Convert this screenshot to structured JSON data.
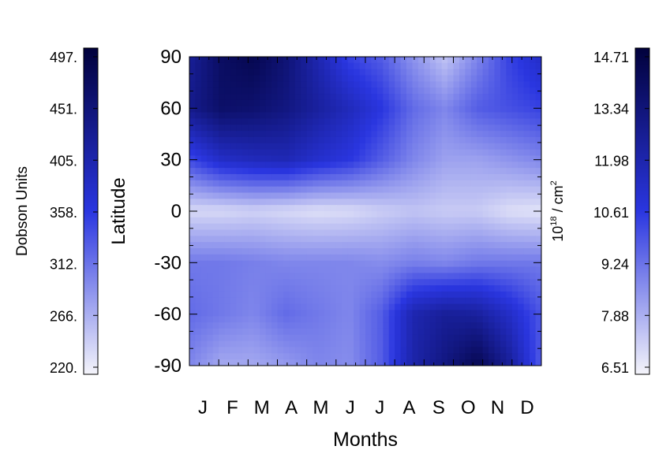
{
  "chart_data": {
    "type": "heatmap",
    "title": "",
    "xlabel": "Months",
    "ylabel": "Latitude",
    "x_categories": [
      "J",
      "F",
      "M",
      "A",
      "M",
      "J",
      "J",
      "A",
      "S",
      "O",
      "N",
      "D"
    ],
    "y_ticks": [
      "90",
      "60",
      "30",
      "0",
      "-30",
      "-60",
      "-90"
    ],
    "y_values": [
      90,
      60,
      30,
      0,
      -30,
      -60,
      -90
    ],
    "ylim": [
      -90,
      90
    ],
    "units": "Dobson Units",
    "z_range": [
      220,
      497
    ],
    "left_colorbar": {
      "label": "Dobson Units",
      "ticks": [
        "497.",
        "451.",
        "405.",
        "358.",
        "312.",
        "266.",
        "220."
      ]
    },
    "right_colorbar": {
      "label_base": "10",
      "label_exponent": "18",
      "label_rest": " / cm",
      "label_rest_exponent": "2",
      "ticks": [
        "14.71",
        "13.34",
        "11.98",
        "10.61",
        "9.24",
        "7.88",
        "6.51"
      ]
    },
    "colormap": {
      "low": "#f4f4fa",
      "mid": "#2a36e0",
      "high": "#01013c"
    },
    "grid": false,
    "grid_latitudes": [
      90,
      60,
      30,
      0,
      -30,
      -60,
      -90
    ],
    "grid_months": [
      "Jan",
      "Mar",
      "May",
      "Jul",
      "Sep",
      "Nov",
      "Dec"
    ],
    "z_values_dobson_units": [
      [
        420,
        465,
        480,
        450,
        400,
        350,
        330,
        290,
        255,
        300,
        350,
        380
      ],
      [
        430,
        460,
        455,
        440,
        415,
        390,
        360,
        320,
        300,
        330,
        340,
        350
      ],
      [
        345,
        380,
        390,
        395,
        375,
        360,
        330,
        300,
        280,
        280,
        290,
        300
      ],
      [
        240,
        240,
        245,
        240,
        235,
        238,
        248,
        255,
        250,
        250,
        236,
        232
      ],
      [
        310,
        310,
        305,
        300,
        300,
        300,
        295,
        305,
        300,
        310,
        310,
        310
      ],
      [
        320,
        310,
        300,
        320,
        310,
        300,
        330,
        400,
        420,
        415,
        380,
        335
      ],
      [
        300,
        275,
        275,
        285,
        300,
        295,
        330,
        405,
        440,
        480,
        420,
        330
      ]
    ]
  }
}
